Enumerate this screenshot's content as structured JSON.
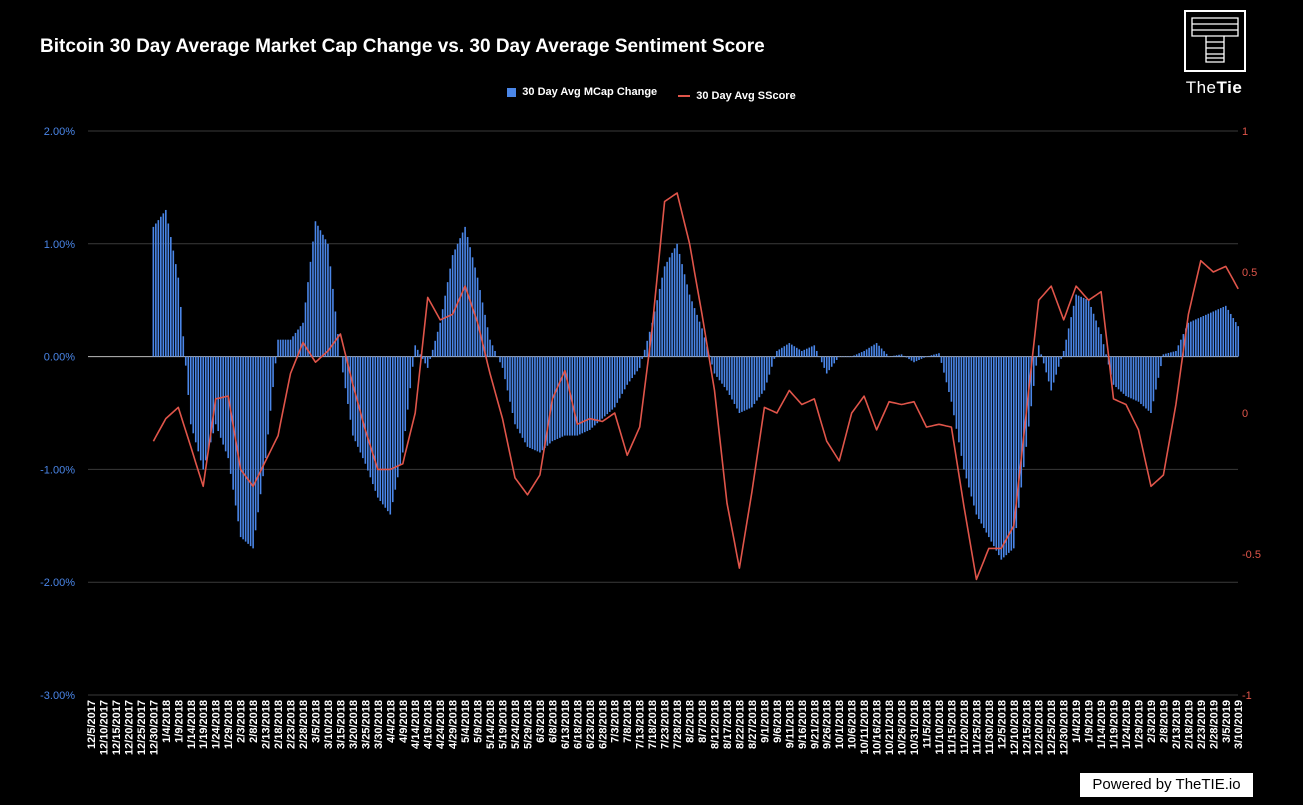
{
  "chart_data": {
    "type": "bar+line",
    "title": "Bitcoin 30 Day Average Market Cap Change vs. 30 Day Average Sentiment Score",
    "legend": [
      "30 Day Avg MCap Change",
      "30 Day Avg SScore"
    ],
    "legend_position": "top-center",
    "colors": {
      "bar": "#4a86e8",
      "line": "#e0554a",
      "grid": "#3a3a3a",
      "left_axis": "#4a86e8",
      "right_axis": "#e0554a"
    },
    "left_axis": {
      "ylim": [
        -0.03,
        0.02
      ],
      "ticks": [
        "2.00%",
        "1.00%",
        "0.00%",
        "-1.00%",
        "-2.00%",
        "-3.00%"
      ],
      "tick_values": [
        2,
        1,
        0,
        -1,
        -2,
        -3
      ]
    },
    "right_axis": {
      "ylim": [
        -1,
        1
      ],
      "ticks": [
        "1",
        "0.5",
        "0",
        "-0.5",
        "-1"
      ],
      "tick_values": [
        1,
        0.5,
        0,
        -0.5,
        -1
      ]
    },
    "grid": true,
    "x_step_days": 5,
    "x_labels": [
      "12/5/2017",
      "12/10/2017",
      "12/15/2017",
      "12/20/2017",
      "12/25/2017",
      "12/30/2017",
      "1/4/2018",
      "1/9/2018",
      "1/14/2018",
      "1/19/2018",
      "1/24/2018",
      "1/29/2018",
      "2/3/2018",
      "2/8/2018",
      "2/13/2018",
      "2/18/2018",
      "2/23/2018",
      "2/28/2018",
      "3/5/2018",
      "3/10/2018",
      "3/15/2018",
      "3/20/2018",
      "3/25/2018",
      "3/30/2018",
      "4/4/2018",
      "4/9/2018",
      "4/14/2018",
      "4/19/2018",
      "4/24/2018",
      "4/29/2018",
      "5/4/2018",
      "5/9/2018",
      "5/14/2018",
      "5/19/2018",
      "5/24/2018",
      "5/29/2018",
      "6/3/2018",
      "6/8/2018",
      "6/13/2018",
      "6/18/2018",
      "6/23/2018",
      "6/28/2018",
      "7/3/2018",
      "7/8/2018",
      "7/13/2018",
      "7/18/2018",
      "7/23/2018",
      "7/28/2018",
      "8/2/2018",
      "8/7/2018",
      "8/12/2018",
      "8/17/2018",
      "8/22/2018",
      "8/27/2018",
      "9/1/2018",
      "9/6/2018",
      "9/11/2018",
      "9/16/2018",
      "9/21/2018",
      "9/26/2018",
      "10/1/2018",
      "10/6/2018",
      "10/11/2018",
      "10/16/2018",
      "10/21/2018",
      "10/26/2018",
      "10/31/2018",
      "11/5/2018",
      "11/10/2018",
      "11/15/2018",
      "11/20/2018",
      "11/25/2018",
      "11/30/2018",
      "12/5/2018",
      "12/10/2018",
      "12/15/2018",
      "12/20/2018",
      "12/25/2018",
      "12/30/2018",
      "1/4/2019",
      "1/9/2019",
      "1/14/2019",
      "1/19/2019",
      "1/24/2019",
      "1/29/2019",
      "2/3/2019",
      "2/8/2019",
      "2/13/2019",
      "2/18/2019",
      "2/23/2019",
      "2/28/2019",
      "3/5/2019",
      "3/10/2019"
    ],
    "series": [
      {
        "name": "30 Day Avg MCap Change",
        "type": "bar",
        "axis": "left",
        "unit": "percent",
        "values": [
          null,
          null,
          null,
          null,
          null,
          1.15,
          1.3,
          0.7,
          -0.6,
          -1.0,
          -0.6,
          -0.9,
          -1.6,
          -1.7,
          -0.9,
          0.15,
          0.15,
          0.3,
          1.2,
          1.0,
          0.0,
          -0.7,
          -0.95,
          -1.25,
          -1.4,
          -0.85,
          0.1,
          -0.1,
          0.3,
          0.9,
          1.15,
          0.7,
          0.15,
          -0.1,
          -0.6,
          -0.8,
          -0.85,
          -0.75,
          -0.7,
          -0.7,
          -0.65,
          -0.55,
          -0.45,
          -0.25,
          -0.1,
          0.3,
          0.8,
          1.0,
          0.55,
          0.25,
          -0.15,
          -0.3,
          -0.5,
          -0.45,
          -0.3,
          0.05,
          0.12,
          0.05,
          0.1,
          -0.15,
          0.0,
          0.0,
          0.05,
          0.12,
          0.0,
          0.02,
          -0.05,
          0.0,
          0.03,
          -0.4,
          -1.0,
          -1.4,
          -1.6,
          -1.8,
          -1.7,
          -0.8,
          0.1,
          -0.3,
          0.05,
          0.55,
          0.5,
          0.2,
          -0.25,
          -0.35,
          -0.4,
          -0.5,
          0.02,
          0.05,
          0.3,
          0.35,
          0.4,
          0.45,
          0.27
        ]
      },
      {
        "name": "30 Day Avg SScore",
        "type": "line",
        "axis": "right",
        "values": [
          null,
          null,
          null,
          null,
          null,
          -0.1,
          -0.02,
          0.02,
          -0.12,
          -0.26,
          0.05,
          0.06,
          -0.2,
          -0.26,
          -0.17,
          -0.08,
          0.14,
          0.25,
          0.18,
          0.22,
          0.28,
          0.1,
          -0.06,
          -0.2,
          -0.2,
          -0.18,
          0.0,
          0.41,
          0.33,
          0.35,
          0.45,
          0.32,
          0.14,
          -0.02,
          -0.23,
          -0.29,
          -0.22,
          0.05,
          0.15,
          -0.04,
          -0.02,
          -0.03,
          0.0,
          -0.15,
          -0.05,
          0.3,
          0.75,
          0.78,
          0.6,
          0.35,
          0.08,
          -0.32,
          -0.55,
          -0.28,
          0.02,
          0.0,
          0.08,
          0.03,
          0.05,
          -0.1,
          -0.17,
          0.0,
          0.06,
          -0.06,
          0.04,
          0.03,
          0.04,
          -0.05,
          -0.04,
          -0.05,
          -0.33,
          -0.59,
          -0.48,
          -0.48,
          -0.4,
          0.0,
          0.4,
          0.45,
          0.33,
          0.45,
          0.4,
          0.43,
          0.05,
          0.03,
          -0.06,
          -0.26,
          -0.22,
          0.03,
          0.35,
          0.54,
          0.5,
          0.52,
          0.44
        ]
      }
    ]
  },
  "logo": {
    "text_light": "The",
    "text_bold": "Tie"
  },
  "footer": {
    "powered_by": "Powered by TheTIE.io"
  }
}
